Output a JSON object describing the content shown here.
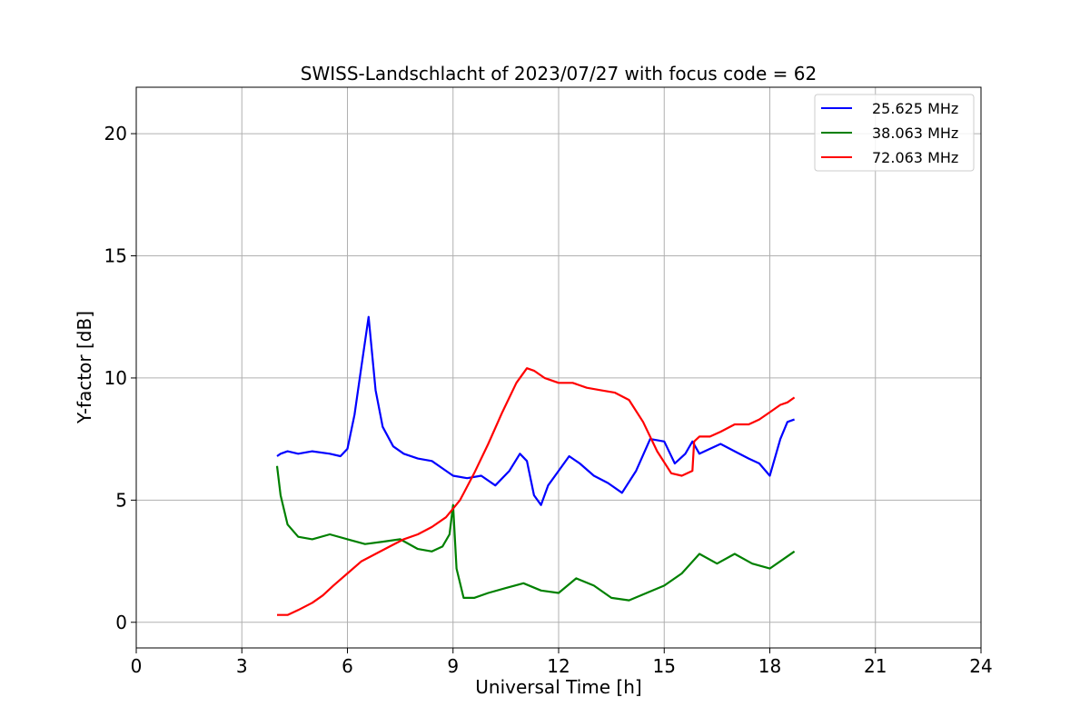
{
  "chart_data": {
    "type": "line",
    "title": "SWISS-Landschlacht of 2023/07/27 with focus code = 62",
    "xlabel": "Universal Time [h]",
    "ylabel": "Y-factor [dB]",
    "xlim": [
      0,
      24
    ],
    "ylim": [
      -1.05,
      21.9
    ],
    "xticks": [
      0,
      3,
      6,
      9,
      12,
      15,
      18,
      21,
      24
    ],
    "yticks": [
      0,
      5,
      10,
      15,
      20
    ],
    "grid": true,
    "legend_position": "top-right",
    "series": [
      {
        "name": "25.625 MHz",
        "color": "#0000ff",
        "x": [
          4.0,
          4.1,
          4.3,
          4.6,
          5.0,
          5.5,
          5.8,
          6.0,
          6.2,
          6.4,
          6.6,
          6.8,
          7.0,
          7.3,
          7.6,
          8.0,
          8.4,
          8.7,
          9.0,
          9.4,
          9.8,
          10.2,
          10.6,
          10.9,
          11.1,
          11.3,
          11.5,
          11.7,
          12.0,
          12.3,
          12.6,
          13.0,
          13.4,
          13.8,
          14.2,
          14.6,
          15.0,
          15.3,
          15.6,
          15.8,
          16.0,
          16.3,
          16.6,
          17.0,
          17.4,
          17.7,
          18.0,
          18.3,
          18.5,
          18.7
        ],
        "y": [
          6.8,
          6.9,
          7.0,
          6.9,
          7.0,
          6.9,
          6.8,
          7.1,
          8.5,
          10.5,
          12.5,
          9.5,
          8.0,
          7.2,
          6.9,
          6.7,
          6.6,
          6.3,
          6.0,
          5.9,
          6.0,
          5.6,
          6.2,
          6.9,
          6.6,
          5.2,
          4.8,
          5.6,
          6.2,
          6.8,
          6.5,
          6.0,
          5.7,
          5.3,
          6.2,
          7.5,
          7.4,
          6.5,
          6.9,
          7.4,
          6.9,
          7.1,
          7.3,
          7.0,
          6.7,
          6.5,
          6.0,
          7.5,
          8.2,
          8.3
        ]
      },
      {
        "name": "38.063 MHz",
        "color": "#008000",
        "x": [
          4.0,
          4.1,
          4.3,
          4.6,
          5.0,
          5.5,
          6.0,
          6.5,
          7.0,
          7.5,
          8.0,
          8.4,
          8.7,
          8.9,
          9.0,
          9.1,
          9.3,
          9.6,
          10.0,
          10.5,
          11.0,
          11.5,
          12.0,
          12.5,
          13.0,
          13.5,
          14.0,
          14.5,
          15.0,
          15.5,
          16.0,
          16.5,
          17.0,
          17.5,
          18.0,
          18.5,
          18.7
        ],
        "y": [
          6.4,
          5.2,
          4.0,
          3.5,
          3.4,
          3.6,
          3.4,
          3.2,
          3.3,
          3.4,
          3.0,
          2.9,
          3.1,
          3.6,
          4.8,
          2.2,
          1.0,
          1.0,
          1.2,
          1.4,
          1.6,
          1.3,
          1.2,
          1.8,
          1.5,
          1.0,
          0.9,
          1.2,
          1.5,
          2.0,
          2.8,
          2.4,
          2.8,
          2.4,
          2.2,
          2.7,
          2.9
        ]
      },
      {
        "name": "72.063 MHz",
        "color": "#ff0000",
        "x": [
          4.0,
          4.3,
          4.6,
          5.0,
          5.3,
          5.6,
          6.0,
          6.4,
          6.8,
          7.2,
          7.6,
          8.0,
          8.4,
          8.8,
          9.2,
          9.6,
          10.0,
          10.4,
          10.8,
          11.1,
          11.3,
          11.6,
          12.0,
          12.4,
          12.8,
          13.2,
          13.6,
          14.0,
          14.4,
          14.8,
          15.2,
          15.5,
          15.8,
          15.85,
          16.0,
          16.3,
          16.6,
          17.0,
          17.4,
          17.7,
          18.0,
          18.3,
          18.5,
          18.7
        ],
        "y": [
          0.3,
          0.3,
          0.5,
          0.8,
          1.1,
          1.5,
          2.0,
          2.5,
          2.8,
          3.1,
          3.4,
          3.6,
          3.9,
          4.3,
          5.0,
          6.1,
          7.3,
          8.6,
          9.8,
          10.4,
          10.3,
          10.0,
          9.8,
          9.8,
          9.6,
          9.5,
          9.4,
          9.1,
          8.2,
          7.0,
          6.1,
          6.0,
          6.2,
          7.4,
          7.6,
          7.6,
          7.8,
          8.1,
          8.1,
          8.3,
          8.6,
          8.9,
          9.0,
          9.2
        ]
      }
    ]
  }
}
